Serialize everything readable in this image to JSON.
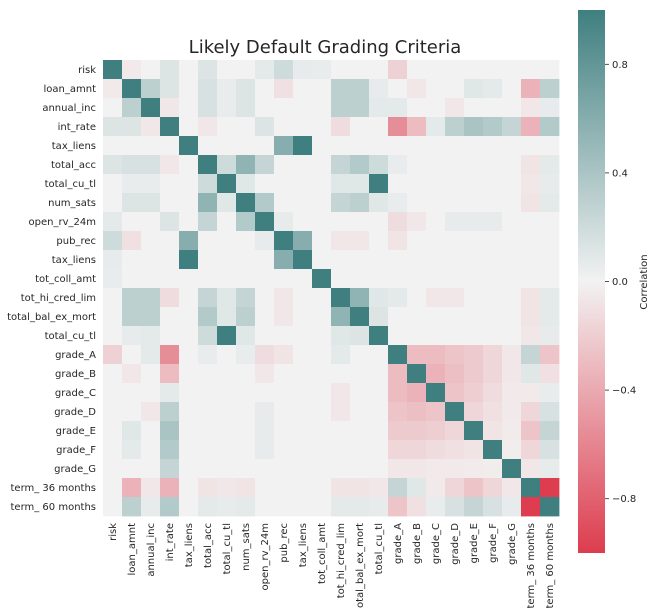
{
  "chart_data": {
    "type": "heatmap",
    "title": "Likely Default Grading Criteria",
    "labels": [
      "risk",
      "loan_amnt",
      "annual_inc",
      "int_rate",
      "tax_liens",
      "total_acc",
      "total_cu_tl",
      "num_sats",
      "open_rv_24m",
      "pub_rec",
      "tax_liens",
      "tot_coll_amt",
      "tot_hi_cred_lim",
      "total_bal_ex_mort",
      "total_cu_tl",
      "grade_A",
      "grade_B",
      "grade_C",
      "grade_D",
      "grade_E",
      "grade_F",
      "grade_G",
      "term_ 36 months",
      "term_ 60 months"
    ],
    "matrix": [
      [
        1.0,
        -0.05,
        0,
        0.12,
        0,
        0.12,
        0,
        0,
        0.08,
        0.2,
        0.06,
        0.05,
        0,
        0,
        0,
        -0.18,
        0,
        0,
        0,
        0,
        0,
        0,
        0,
        0
      ],
      [
        -0.05,
        1.0,
        0.3,
        0.12,
        0,
        0.15,
        0.05,
        0.12,
        0,
        -0.1,
        0,
        0,
        0.3,
        0.3,
        0.06,
        0,
        -0.06,
        0,
        0,
        0.1,
        0.08,
        0,
        -0.35,
        0.3
      ],
      [
        0,
        0.3,
        1.0,
        -0.06,
        0,
        0.15,
        0.05,
        0.12,
        0,
        0,
        0,
        0,
        0.3,
        0.3,
        0.08,
        0.08,
        0,
        0,
        -0.06,
        0,
        0,
        0,
        -0.06,
        0.06
      ],
      [
        0.12,
        0.12,
        -0.06,
        1.0,
        0,
        -0.06,
        0,
        0,
        0.12,
        0,
        0,
        0,
        -0.12,
        0,
        0,
        -0.55,
        -0.3,
        0.08,
        0.3,
        0.4,
        0.35,
        0.25,
        -0.35,
        0.35
      ],
      [
        0,
        0,
        0,
        0,
        1.0,
        0,
        0,
        0,
        0,
        0.6,
        1.0,
        0,
        0,
        0,
        0,
        0,
        0,
        0,
        0,
        0,
        0,
        0,
        0,
        0
      ],
      [
        0.12,
        0.15,
        0.15,
        -0.06,
        0,
        1.0,
        0.2,
        0.55,
        0.25,
        0,
        0,
        0,
        0.25,
        0.35,
        0.2,
        0.05,
        0,
        0,
        0,
        0,
        0,
        0,
        -0.08,
        0.08
      ],
      [
        0,
        0.05,
        0.05,
        0,
        0,
        0.2,
        1.0,
        0.1,
        0,
        0,
        0,
        0,
        0.1,
        0.1,
        1.0,
        0,
        0,
        0,
        0,
        0,
        0,
        0,
        -0.06,
        0.06
      ],
      [
        0,
        0.12,
        0.12,
        0,
        0,
        0.55,
        0.1,
        1.0,
        0.35,
        0,
        0,
        0,
        0.25,
        0.3,
        0.1,
        0.05,
        0,
        0,
        0,
        0,
        0,
        0,
        -0.08,
        0.08
      ],
      [
        0.08,
        0,
        0,
        0.12,
        0,
        0.25,
        0,
        0.35,
        1.0,
        0.06,
        0,
        0,
        0,
        0,
        0,
        -0.12,
        -0.06,
        0,
        0.06,
        0.06,
        0.06,
        0,
        0,
        0
      ],
      [
        0.2,
        -0.1,
        0,
        0,
        0.6,
        0,
        0,
        0,
        0.06,
        1.0,
        0.6,
        0,
        -0.06,
        -0.06,
        0,
        -0.08,
        0,
        0,
        0,
        0,
        0,
        0,
        0,
        0
      ],
      [
        0.06,
        0,
        0,
        0,
        1.0,
        0,
        0,
        0,
        0,
        0.6,
        1.0,
        0,
        0,
        0,
        0,
        0,
        0,
        0,
        0,
        0,
        0,
        0,
        0,
        0
      ],
      [
        0.05,
        0,
        0,
        0,
        0,
        0,
        0,
        0,
        0,
        0,
        0,
        1.0,
        0,
        0,
        0,
        0,
        0,
        0,
        0,
        0,
        0,
        0,
        0,
        0
      ],
      [
        0,
        0.3,
        0.3,
        -0.12,
        0,
        0.25,
        0.1,
        0.25,
        0,
        -0.06,
        0,
        0,
        1.0,
        0.55,
        0.1,
        0.08,
        0,
        -0.06,
        -0.06,
        0,
        0,
        0,
        -0.08,
        0.08
      ],
      [
        0,
        0.3,
        0.3,
        0,
        0,
        0.35,
        0.1,
        0.3,
        0,
        -0.06,
        0,
        0,
        0.55,
        1.0,
        0.12,
        0,
        0,
        0,
        0,
        0,
        0,
        0,
        -0.08,
        0.08
      ],
      [
        0,
        0.06,
        0.08,
        0,
        0,
        0.2,
        1.0,
        0.1,
        0,
        0,
        0,
        0,
        0.1,
        0.12,
        1.0,
        0,
        0,
        0,
        0,
        0,
        0,
        0,
        -0.06,
        0.06
      ],
      [
        -0.18,
        0,
        0.08,
        -0.55,
        0,
        0.05,
        0,
        0.05,
        -0.12,
        -0.08,
        0,
        0,
        0.08,
        0,
        0,
        1.0,
        -0.3,
        -0.3,
        -0.25,
        -0.22,
        -0.15,
        -0.06,
        0.25,
        -0.25
      ],
      [
        0,
        -0.06,
        0,
        -0.3,
        0,
        0,
        0,
        0,
        -0.06,
        0,
        0,
        0,
        0,
        0,
        0,
        -0.3,
        1.0,
        -0.35,
        -0.28,
        -0.22,
        -0.15,
        -0.06,
        0.1,
        -0.1
      ],
      [
        0,
        0,
        0,
        0.08,
        0,
        0,
        0,
        0,
        0,
        0,
        0,
        0,
        -0.06,
        0,
        0,
        -0.3,
        -0.35,
        1.0,
        -0.25,
        -0.2,
        -0.12,
        -0.05,
        -0.05,
        0.05
      ],
      [
        0,
        0,
        -0.06,
        0.3,
        0,
        0,
        0,
        0,
        0.06,
        0,
        0,
        0,
        -0.06,
        0,
        0,
        -0.25,
        -0.28,
        -0.25,
        1.0,
        -0.15,
        -0.1,
        -0.05,
        -0.15,
        0.15
      ],
      [
        0,
        0.1,
        0,
        0.4,
        0,
        0,
        0,
        0,
        0.06,
        0,
        0,
        0,
        0,
        0,
        0,
        -0.22,
        -0.22,
        -0.2,
        -0.15,
        1.0,
        -0.08,
        -0.04,
        -0.25,
        0.25
      ],
      [
        0,
        0.08,
        0,
        0.35,
        0,
        0,
        0,
        0,
        0.06,
        0,
        0,
        0,
        0,
        0,
        0,
        -0.15,
        -0.15,
        -0.12,
        -0.1,
        -0.08,
        1.0,
        -0.03,
        -0.15,
        0.15
      ],
      [
        0,
        0,
        0,
        0.25,
        0,
        0,
        0,
        0,
        0,
        0,
        0,
        0,
        0,
        0,
        0,
        -0.06,
        -0.06,
        -0.05,
        -0.05,
        -0.04,
        -0.03,
        1.0,
        -0.06,
        0.06
      ],
      [
        0,
        -0.35,
        -0.06,
        -0.35,
        0,
        -0.08,
        -0.06,
        -0.08,
        0,
        0,
        0,
        0,
        -0.08,
        -0.08,
        -0.06,
        0.25,
        0.1,
        -0.05,
        -0.15,
        -0.25,
        -0.15,
        -0.06,
        1.0,
        -1.0
      ],
      [
        0,
        0.3,
        0.06,
        0.35,
        0,
        0.08,
        0.06,
        0.08,
        0,
        0,
        0,
        0,
        0.08,
        0.08,
        0.06,
        -0.25,
        -0.1,
        0.05,
        0.15,
        0.25,
        0.15,
        0.06,
        -1.0,
        1.0
      ]
    ],
    "vmin": -1.0,
    "vmax": 1.0,
    "colorbar": {
      "label": "Correlation",
      "ticks": [
        0.8,
        0.4,
        0.0,
        -0.4,
        -0.8
      ],
      "tick_labels": [
        "0.8",
        "0.4",
        "0.0",
        "−0.4",
        "−0.8"
      ],
      "color_low": "#dd3d4e",
      "color_mid": "#f2f2f2",
      "color_high": "#3f7f80"
    },
    "grid": false,
    "legend": "right"
  }
}
